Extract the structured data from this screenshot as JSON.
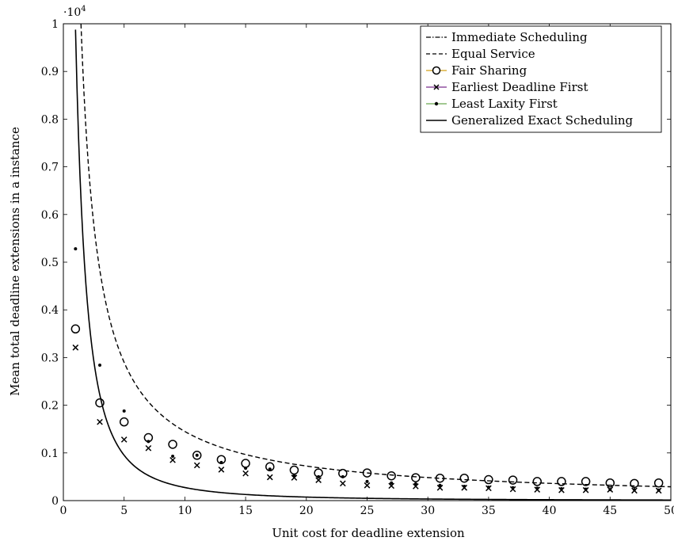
{
  "chart_data": {
    "type": "scatter",
    "xlabel": "Unit cost for deadline extension",
    "ylabel": "Mean total deadline extensions in a instance",
    "y_multiplier": "·10",
    "y_multiplier_exp": "4",
    "xlim": [
      0,
      50
    ],
    "ylim": [
      0,
      1
    ],
    "xticks": [
      0,
      5,
      10,
      15,
      20,
      25,
      30,
      35,
      40,
      45,
      50
    ],
    "yticks": [
      0,
      0.1,
      0.2,
      0.3,
      0.4,
      0.5,
      0.6,
      0.7,
      0.8,
      0.9,
      1
    ],
    "ytick_labels": [
      "0",
      "0.1",
      "0.2",
      "0.3",
      "0.4",
      "0.5",
      "0.6",
      "0.7",
      "0.8",
      "0.9",
      "1"
    ],
    "grid": false,
    "legend_position": "top-right",
    "series": [
      {
        "name": "Immediate Scheduling",
        "style": "dashdot",
        "color": "#000000",
        "x": [
          0.5,
          50
        ],
        "y": [
          0.0,
          0.0
        ]
      },
      {
        "name": "Equal Service",
        "style": "dashed",
        "color": "#000000",
        "curve": "inverse",
        "coefficient": 1.45,
        "x_range": [
          1.45,
          50
        ]
      },
      {
        "name": "Fair Sharing",
        "style": "circle",
        "color": "#d4a017",
        "x": [
          1,
          3,
          5,
          7,
          9,
          11,
          13,
          15,
          17,
          19,
          21,
          23,
          25,
          27,
          29,
          31,
          33,
          35,
          37,
          39,
          41,
          43,
          45,
          47,
          49
        ],
        "y": [
          0.36,
          0.205,
          0.165,
          0.132,
          0.118,
          0.095,
          0.086,
          0.078,
          0.071,
          0.064,
          0.058,
          0.057,
          0.058,
          0.052,
          0.048,
          0.047,
          0.047,
          0.044,
          0.043,
          0.04,
          0.04,
          0.04,
          0.037,
          0.036,
          0.037
        ]
      },
      {
        "name": "Earliest Deadline First",
        "style": "cross",
        "color": "#7b2d8e",
        "x": [
          1,
          3,
          5,
          7,
          9,
          11,
          13,
          15,
          17,
          19,
          21,
          23,
          25,
          27,
          29,
          31,
          33,
          35,
          37,
          39,
          41,
          43,
          45,
          47,
          49
        ],
        "y": [
          0.321,
          0.165,
          0.128,
          0.11,
          0.085,
          0.074,
          0.065,
          0.057,
          0.049,
          0.048,
          0.043,
          0.036,
          0.032,
          0.031,
          0.03,
          0.027,
          0.027,
          0.026,
          0.024,
          0.023,
          0.022,
          0.022,
          0.023,
          0.021,
          0.021
        ]
      },
      {
        "name": "Least Laxity First",
        "style": "dot",
        "color": "#6aa84f",
        "x": [
          1,
          3,
          5,
          7,
          9,
          11,
          13,
          15,
          17,
          19,
          21,
          23,
          25,
          27,
          29,
          31,
          33,
          35,
          37,
          39,
          41,
          43,
          45,
          47,
          49
        ],
        "y": [
          0.528,
          0.284,
          0.188,
          0.124,
          0.093,
          0.095,
          0.08,
          0.068,
          0.066,
          0.053,
          0.05,
          0.05,
          0.04,
          0.037,
          0.035,
          0.032,
          0.03,
          0.028,
          0.027,
          0.026,
          0.025,
          0.024,
          0.023,
          0.023,
          0.022
        ]
      },
      {
        "name": "Generalized Exact Scheduling",
        "style": "solid",
        "color": "#000000",
        "curve": "inverse-square",
        "coefficient": 3.2,
        "offset": 0.8,
        "x_range": [
          1,
          50
        ]
      }
    ]
  }
}
